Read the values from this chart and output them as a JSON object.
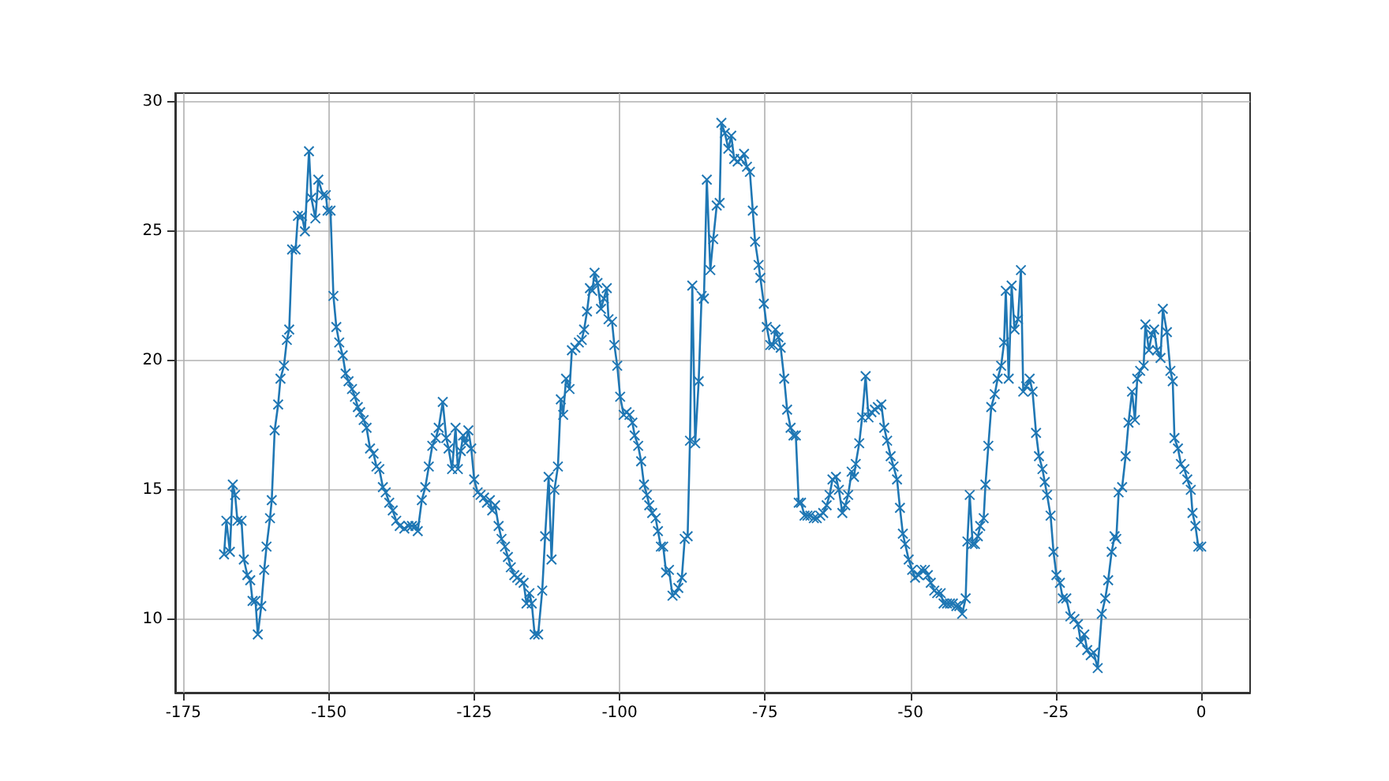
{
  "chart_data": {
    "type": "line",
    "xlim": [
      -176.4,
      8.4
    ],
    "ylim": [
      7.15,
      30.35
    ],
    "xticks": [
      -175,
      -150,
      -125,
      -100,
      -75,
      -50,
      -25,
      0
    ],
    "yticks": [
      10,
      15,
      20,
      25,
      30
    ],
    "grid": true,
    "marker": "cross",
    "line_style": "solid",
    "series": [
      {
        "color": "#1f77b4",
        "x": [
          -168.0,
          -167.6,
          -167.0,
          -166.5,
          -166.1,
          -165.7,
          -165.0,
          -164.6,
          -164.0,
          -163.5,
          -163.1,
          -162.6,
          -162.2,
          -161.6,
          -161.1,
          -160.7,
          -160.1,
          -159.8,
          -159.3,
          -158.7,
          -158.3,
          -157.7,
          -157.2,
          -156.8,
          -156.3,
          -155.7,
          -155.3,
          -154.6,
          -154.1,
          -153.4,
          -153.0,
          -152.3,
          -151.8,
          -151.0,
          -150.5,
          -150.2,
          -149.7,
          -149.2,
          -148.7,
          -148.2,
          -147.6,
          -147.1,
          -146.6,
          -146.0,
          -145.5,
          -145.0,
          -144.6,
          -144.0,
          -143.5,
          -142.9,
          -142.3,
          -141.8,
          -141.3,
          -140.7,
          -140.2,
          -139.6,
          -139.0,
          -138.4,
          -137.8,
          -137.0,
          -136.3,
          -135.7,
          -135.1,
          -134.7,
          -134.0,
          -133.4,
          -132.8,
          -132.2,
          -131.6,
          -131.1,
          -130.4,
          -129.8,
          -129.4,
          -128.8,
          -128.2,
          -127.8,
          -127.3,
          -126.9,
          -126.5,
          -126.0,
          -125.5,
          -125.0,
          -124.4,
          -123.9,
          -123.3,
          -122.8,
          -122.3,
          -121.9,
          -121.4,
          -120.8,
          -120.3,
          -119.7,
          -119.2,
          -118.7,
          -118.1,
          -117.6,
          -117.1,
          -116.5,
          -116.0,
          -115.5,
          -115.1,
          -114.6,
          -114.0,
          -113.3,
          -112.8,
          -112.2,
          -111.7,
          -111.2,
          -110.6,
          -110.1,
          -109.7,
          -109.2,
          -108.6,
          -108.2,
          -107.6,
          -107.0,
          -106.5,
          -106.1,
          -105.6,
          -105.1,
          -104.7,
          -104.3,
          -103.8,
          -103.2,
          -102.7,
          -102.2,
          -101.9,
          -101.3,
          -100.9,
          -100.4,
          -99.9,
          -99.3,
          -98.8,
          -98.3,
          -97.8,
          -97.4,
          -96.8,
          -96.3,
          -95.8,
          -95.3,
          -94.9,
          -94.4,
          -93.8,
          -93.4,
          -92.9,
          -92.5,
          -92.0,
          -91.5,
          -90.9,
          -90.4,
          -89.9,
          -89.3,
          -88.8,
          -88.3,
          -87.9,
          -87.5,
          -87.0,
          -86.4,
          -85.9,
          -85.5,
          -85.0,
          -84.4,
          -83.9,
          -83.3,
          -82.8,
          -82.5,
          -81.9,
          -81.3,
          -80.8,
          -80.3,
          -79.7,
          -79.2,
          -78.6,
          -78.1,
          -77.6,
          -77.1,
          -76.7,
          -76.1,
          -75.8,
          -75.2,
          -74.7,
          -74.1,
          -73.6,
          -73.2,
          -72.7,
          -72.3,
          -71.7,
          -71.2,
          -70.6,
          -70.1,
          -69.7,
          -69.2,
          -68.8,
          -68.2,
          -67.7,
          -67.2,
          -66.6,
          -66.1,
          -65.5,
          -65.0,
          -64.4,
          -63.9,
          -63.4,
          -62.8,
          -62.3,
          -61.7,
          -61.2,
          -60.7,
          -60.1,
          -59.7,
          -59.4,
          -58.8,
          -58.3,
          -57.7,
          -57.2,
          -56.7,
          -56.1,
          -55.6,
          -55.0,
          -54.5,
          -54.0,
          -53.4,
          -52.9,
          -52.3,
          -51.8,
          -51.3,
          -50.9,
          -50.3,
          -49.7,
          -49.2,
          -48.6,
          -48.1,
          -47.5,
          -47.0,
          -46.5,
          -45.9,
          -45.4,
          -44.8,
          -44.3,
          -43.7,
          -43.2,
          -42.7,
          -42.1,
          -41.6,
          -41.1,
          -40.5,
          -40.2,
          -39.8,
          -39.3,
          -38.9,
          -38.4,
          -38.0,
          -37.4,
          -37.1,
          -36.6,
          -36.1,
          -35.5,
          -35.0,
          -34.4,
          -33.9,
          -33.6,
          -33.1,
          -32.6,
          -32.1,
          -31.5,
          -31.0,
          -30.6,
          -30.1,
          -29.5,
          -29.0,
          -28.4,
          -27.9,
          -27.3,
          -26.9,
          -26.5,
          -25.9,
          -25.4,
          -24.9,
          -24.3,
          -23.8,
          -23.2,
          -22.5,
          -21.8,
          -21.2,
          -20.7,
          -20.1,
          -19.6,
          -19.0,
          -18.5,
          -17.8,
          -17.1,
          -16.5,
          -16.0,
          -15.4,
          -14.9,
          -14.6,
          -14.2,
          -13.6,
          -13.0,
          -12.5,
          -11.9,
          -11.4,
          -11.0,
          -10.5,
          -9.9,
          -9.6,
          -9.0,
          -8.5,
          -8.1,
          -7.6,
          -7.0,
          -6.6,
          -5.9,
          -5.3,
          -4.9,
          -4.6,
          -4.0,
          -3.5,
          -2.9,
          -2.4,
          -1.8,
          -1.5,
          -1.0,
          -0.5,
          0
        ],
        "values": [
          12.5,
          13.8,
          12.6,
          15.2,
          14.8,
          13.8,
          13.8,
          12.3,
          11.7,
          11.5,
          10.7,
          10.7,
          9.4,
          10.5,
          11.9,
          12.8,
          13.9,
          14.6,
          17.3,
          18.3,
          19.3,
          19.8,
          20.8,
          21.2,
          24.3,
          24.3,
          25.6,
          25.6,
          25.0,
          28.1,
          26.3,
          25.5,
          27.0,
          26.4,
          26.4,
          25.8,
          25.8,
          22.5,
          21.3,
          20.7,
          20.2,
          19.5,
          19.2,
          18.9,
          18.6,
          18.2,
          18.0,
          17.7,
          17.4,
          16.6,
          16.4,
          15.9,
          15.8,
          15.1,
          14.9,
          14.5,
          14.2,
          13.8,
          13.6,
          13.5,
          13.6,
          13.6,
          13.6,
          13.4,
          14.6,
          15.1,
          15.9,
          16.7,
          17.0,
          17.4,
          18.4,
          17.0,
          16.6,
          15.8,
          17.4,
          15.8,
          16.5,
          17.1,
          16.8,
          17.3,
          16.6,
          15.4,
          14.9,
          14.8,
          14.7,
          14.5,
          14.6,
          14.2,
          14.4,
          13.6,
          13.1,
          12.8,
          12.4,
          12.0,
          11.7,
          11.6,
          11.5,
          11.4,
          10.6,
          11.0,
          10.6,
          9.4,
          9.4,
          11.1,
          13.2,
          15.5,
          12.3,
          15.0,
          15.9,
          18.5,
          17.9,
          19.3,
          18.9,
          20.4,
          20.5,
          20.7,
          20.8,
          21.2,
          21.9,
          22.8,
          22.7,
          23.4,
          23.0,
          22.0,
          22.4,
          22.8,
          21.6,
          21.5,
          20.6,
          19.8,
          18.6,
          17.9,
          18.0,
          17.9,
          17.6,
          17.1,
          16.7,
          16.1,
          15.2,
          14.8,
          14.4,
          14.1,
          13.9,
          13.4,
          12.8,
          12.8,
          11.8,
          11.9,
          10.9,
          11.0,
          11.2,
          11.6,
          13.1,
          13.2,
          16.9,
          22.9,
          16.8,
          19.2,
          22.5,
          22.4,
          27.0,
          23.5,
          24.7,
          26.0,
          26.1,
          29.2,
          28.8,
          28.2,
          28.7,
          27.8,
          27.7,
          27.8,
          28.0,
          27.5,
          27.3,
          25.8,
          24.6,
          23.7,
          23.2,
          22.2,
          21.3,
          20.6,
          20.6,
          21.2,
          20.9,
          20.5,
          19.3,
          18.1,
          17.4,
          17.1,
          17.1,
          14.5,
          14.5,
          14.0,
          14.0,
          14.0,
          13.9,
          13.9,
          14.0,
          14.1,
          14.4,
          14.8,
          15.4,
          15.5,
          15.0,
          14.1,
          14.4,
          14.8,
          15.7,
          15.5,
          16.0,
          16.8,
          17.8,
          19.4,
          17.8,
          18.0,
          18.1,
          18.2,
          18.3,
          17.4,
          16.9,
          16.3,
          15.9,
          15.4,
          14.3,
          13.3,
          12.9,
          12.3,
          11.9,
          11.6,
          11.7,
          11.9,
          11.9,
          11.7,
          11.4,
          11.1,
          11.0,
          11.0,
          10.6,
          10.6,
          10.6,
          10.6,
          10.5,
          10.5,
          10.2,
          10.8,
          13.0,
          14.8,
          12.9,
          12.9,
          13.2,
          13.6,
          13.9,
          15.2,
          16.7,
          18.2,
          18.7,
          19.3,
          19.8,
          20.7,
          22.7,
          19.3,
          22.9,
          21.2,
          21.6,
          23.5,
          18.8,
          19.0,
          19.3,
          18.8,
          17.2,
          16.3,
          15.8,
          15.3,
          14.8,
          14.0,
          12.6,
          11.7,
          11.4,
          10.8,
          10.8,
          10.1,
          10.0,
          9.8,
          9.1,
          9.4,
          8.8,
          8.6,
          8.7,
          8.1,
          10.2,
          10.8,
          11.5,
          12.6,
          13.2,
          13.1,
          14.9,
          15.1,
          16.3,
          17.6,
          18.8,
          17.7,
          19.3,
          19.6,
          19.8,
          21.4,
          20.4,
          21.0,
          21.2,
          20.4,
          20.1,
          22.0,
          21.1,
          19.6,
          19.2,
          17.0,
          16.6,
          16.0,
          15.8,
          15.4,
          15.0,
          14.1,
          13.6,
          12.8,
          12.8
        ]
      }
    ]
  }
}
